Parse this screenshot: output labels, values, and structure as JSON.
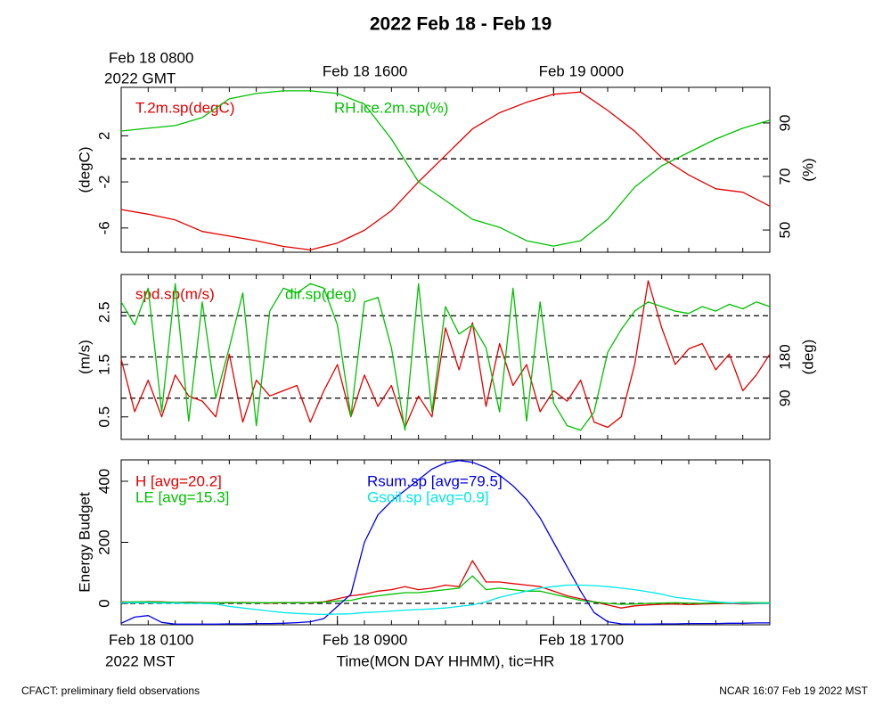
{
  "title": "2022 Feb 18 - Feb 19",
  "footer": {
    "left": "CFACT: preliminary field observations",
    "right": "NCAR 16:07 Feb 19 2022 MST"
  },
  "chart_data": [
    {
      "type": "line",
      "ylabel": "(degC)",
      "y2label": "(%)",
      "xlim": [
        0,
        24
      ],
      "x2ticks": [
        {
          "value": 0,
          "label": "Feb 18 0800"
        },
        {
          "value": 8,
          "label": "Feb 18 1600"
        },
        {
          "value": 16,
          "label": "Feb 19 0000"
        }
      ],
      "x2label_sub": "2022 GMT",
      "minor_xticks": [
        0,
        1,
        2,
        3,
        4,
        5,
        6,
        7,
        8,
        9,
        10,
        11,
        12,
        13,
        14,
        15,
        16,
        17,
        18,
        19,
        20,
        21,
        22,
        23,
        24
      ],
      "ylim": [
        -8.1,
        6.2
      ],
      "yticks": [
        -6,
        -2,
        2
      ],
      "y2lim": [
        41.7,
        103.3
      ],
      "y2ticks": [
        50,
        70,
        90
      ],
      "hlines": [
        0
      ],
      "hlines_axis": "y",
      "x": [
        0,
        1,
        2,
        3,
        4,
        5,
        6,
        7,
        8,
        9,
        10,
        11,
        12,
        13,
        14,
        15,
        16,
        17,
        18,
        19,
        20,
        21,
        22,
        23,
        24
      ],
      "series": [
        {
          "name": "T.2m.sp(degC)",
          "color": "#e00000",
          "axis": "y",
          "values": [
            -4.4,
            -4.8,
            -5.3,
            -6.3,
            -6.7,
            -7.1,
            -7.6,
            -7.9,
            -7.3,
            -6.2,
            -4.5,
            -2.0,
            0.3,
            2.6,
            4.0,
            4.9,
            5.6,
            5.8,
            4.2,
            2.4,
            0.1,
            -1.4,
            -2.6,
            -2.9,
            -4.1
          ]
        },
        {
          "name": "RH.ice.2m.sp(%)",
          "color": "#00c000",
          "axis": "y2",
          "values": [
            87,
            88,
            89,
            92,
            99,
            101,
            102,
            102,
            101,
            97,
            84,
            68,
            61,
            54,
            51,
            46,
            44,
            46,
            54,
            66,
            74,
            79,
            84,
            88,
            91
          ]
        }
      ]
    },
    {
      "type": "line",
      "ylabel": "(m/s)",
      "y2label": "(deg)",
      "xlim": [
        0,
        24
      ],
      "ylim": [
        0.07,
        3.22
      ],
      "yticks": [
        0.5,
        1.5,
        2.5
      ],
      "y2lim": [
        0,
        360
      ],
      "y2ticks": [
        90,
        180
      ],
      "hlines": [
        90,
        180,
        270
      ],
      "hlines_axis": "y2",
      "x": [
        0,
        0.5,
        1,
        1.5,
        2,
        2.5,
        3,
        3.5,
        4,
        4.5,
        5,
        5.5,
        6,
        6.5,
        7,
        7.5,
        8,
        8.5,
        9,
        9.5,
        10,
        10.5,
        11,
        11.5,
        12,
        12.5,
        13,
        13.5,
        14,
        14.5,
        15,
        15.5,
        16,
        16.5,
        17,
        17.5,
        18,
        18.5,
        19,
        19.5,
        20,
        20.5,
        21,
        21.5,
        22,
        22.5,
        23,
        23.5,
        24
      ],
      "series": [
        {
          "name": "spd.sp(m/s)",
          "color": "#e00000",
          "axis": "y",
          "values": [
            1.6,
            0.6,
            1.2,
            0.5,
            1.3,
            0.9,
            0.8,
            0.5,
            1.7,
            0.4,
            1.2,
            0.9,
            1.0,
            1.1,
            0.4,
            1.0,
            1.5,
            0.5,
            1.3,
            0.7,
            1.1,
            0.3,
            0.9,
            0.5,
            2.2,
            1.4,
            2.3,
            0.7,
            1.9,
            1.1,
            1.5,
            0.6,
            1.0,
            0.8,
            1.2,
            0.4,
            0.3,
            0.5,
            1.5,
            3.1,
            2.2,
            1.5,
            1.8,
            1.9,
            1.4,
            1.7,
            1.0,
            1.3,
            1.7
          ]
        },
        {
          "name": "dir.sp(deg)",
          "color": "#00c000",
          "axis": "y2",
          "values": [
            300,
            250,
            330,
            60,
            340,
            40,
            300,
            90,
            200,
            320,
            30,
            280,
            330,
            320,
            340,
            330,
            250,
            50,
            300,
            310,
            200,
            20,
            340,
            60,
            290,
            230,
            250,
            200,
            60,
            330,
            40,
            300,
            80,
            30,
            20,
            60,
            190,
            240,
            280,
            300,
            290,
            280,
            275,
            290,
            280,
            295,
            285,
            300,
            290
          ]
        }
      ]
    },
    {
      "type": "line",
      "ylabel": "Energy Budget",
      "xlim": [
        0,
        24
      ],
      "xticks": [
        {
          "value": 0,
          "label": "Feb 18 0100"
        },
        {
          "value": 8,
          "label": "Feb 18 0900"
        },
        {
          "value": 16,
          "label": "Feb 18 1700"
        }
      ],
      "xlabel": "Time(MON DAY HHMM), tic=HR",
      "xlabel_sub": "2022 MST",
      "ylim": [
        -70,
        470
      ],
      "yticks": [
        0,
        200,
        400
      ],
      "hlines": [
        0
      ],
      "hlines_axis": "y",
      "x": [
        0,
        0.5,
        1,
        1.5,
        2,
        2.5,
        3,
        3.5,
        4,
        4.5,
        5,
        5.5,
        6,
        6.5,
        7,
        7.5,
        8,
        8.5,
        9,
        9.5,
        10,
        10.5,
        11,
        11.5,
        12,
        12.5,
        13,
        13.5,
        14,
        14.5,
        15,
        15.5,
        16,
        16.5,
        17,
        17.5,
        18,
        18.5,
        19,
        19.5,
        20,
        20.5,
        21,
        21.5,
        22,
        22.5,
        23,
        23.5,
        24
      ],
      "series": [
        {
          "name": "H [avg=20.2]",
          "color": "#e00000",
          "axis": "y",
          "values": [
            5,
            4,
            6,
            5,
            3,
            4,
            3,
            2,
            2,
            3,
            2,
            1,
            2,
            3,
            2,
            5,
            15,
            25,
            30,
            40,
            45,
            55,
            45,
            50,
            60,
            55,
            140,
            70,
            70,
            65,
            60,
            55,
            40,
            25,
            15,
            5,
            -5,
            -15,
            -8,
            -5,
            -3,
            -2,
            -4,
            -2,
            -1,
            0,
            -2,
            -1,
            0
          ]
        },
        {
          "name": "LE [avg=15.3]",
          "color": "#00c000",
          "axis": "y",
          "values": [
            4,
            5,
            5,
            4,
            3,
            3,
            2,
            2,
            3,
            2,
            2,
            2,
            3,
            2,
            3,
            4,
            8,
            10,
            20,
            25,
            30,
            35,
            35,
            40,
            45,
            50,
            90,
            45,
            50,
            45,
            40,
            40,
            30,
            20,
            10,
            5,
            0,
            -3,
            -2,
            0,
            1,
            2,
            1,
            0,
            2,
            1,
            3,
            2,
            2
          ]
        },
        {
          "name": "Rsum.sp [avg=79.5]",
          "color": "#0000e0",
          "axis": "y",
          "values": [
            -65,
            -45,
            -40,
            -62,
            -68,
            -68,
            -68,
            -68,
            -67,
            -67,
            -66,
            -66,
            -65,
            -63,
            -60,
            -50,
            -10,
            30,
            200,
            290,
            335,
            370,
            405,
            440,
            460,
            468,
            462,
            445,
            420,
            385,
            340,
            280,
            200,
            120,
            40,
            -30,
            -60,
            -67,
            -68,
            -68,
            -67,
            -67,
            -66,
            -66,
            -66,
            -65,
            -65,
            -64,
            -64
          ]
        },
        {
          "name": "Gsoil.sp [avg=0.9]",
          "color": "#00e8e8",
          "axis": "y",
          "values": [
            2,
            2,
            2,
            1,
            1,
            0,
            0,
            -2,
            -10,
            -15,
            -20,
            -25,
            -30,
            -33,
            -35,
            -36,
            -35,
            -34,
            -30,
            -28,
            -25,
            -22,
            -20,
            -18,
            -15,
            -10,
            -5,
            5,
            20,
            30,
            40,
            50,
            55,
            60,
            60,
            58,
            55,
            50,
            45,
            38,
            30,
            20,
            15,
            10,
            5,
            2,
            0,
            0,
            0
          ]
        }
      ]
    }
  ]
}
